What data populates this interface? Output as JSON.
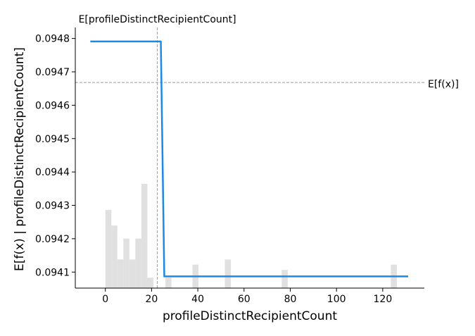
{
  "chart_data": {
    "type": "line",
    "title": "",
    "xlabel": "profileDistinctRecipientCount",
    "ylabel": "E[f(x) | profileDistinctRecipientCount]",
    "xlim": [
      -13,
      138
    ],
    "ylim": [
      0.094052,
      0.094833
    ],
    "xticks": [
      "0",
      "20",
      "40",
      "60",
      "80",
      "100",
      "120"
    ],
    "xtick_values": [
      0,
      20,
      40,
      60,
      80,
      100,
      120
    ],
    "yticks": [
      "0.0941",
      "0.0942",
      "0.0943",
      "0.0944",
      "0.0945",
      "0.0946",
      "0.0947",
      "0.0948"
    ],
    "ytick_values": [
      0.0941,
      0.0942,
      0.0943,
      0.0944,
      0.0945,
      0.0946,
      0.0947,
      0.0948
    ],
    "series": [
      {
        "color": "#1e88e5",
        "x": [
          -6.5,
          24,
          25.5,
          131
        ],
        "y": [
          0.094791,
          0.094791,
          0.094087,
          0.094087
        ]
      }
    ],
    "reference_lines": {
      "expected_x_value": 22.5,
      "expected_x_label": "E[profileDistinctRecipientCount]",
      "expected_fx_value": 0.094668,
      "expected_fx_label": "E[f(x)]"
    },
    "histogram": {
      "color": "#e0e0e0",
      "bin_width": 2.6,
      "bins": [
        {
          "x": 0,
          "height": 0.3
        },
        {
          "x": 2.6,
          "height": 0.24
        },
        {
          "x": 5.2,
          "height": 0.11
        },
        {
          "x": 7.8,
          "height": 0.19
        },
        {
          "x": 10.4,
          "height": 0.11
        },
        {
          "x": 13.0,
          "height": 0.19
        },
        {
          "x": 15.6,
          "height": 0.4
        },
        {
          "x": 18.2,
          "height": 0.04
        },
        {
          "x": 26.0,
          "height": 0.04
        },
        {
          "x": 37.7,
          "height": 0.09
        },
        {
          "x": 51.7,
          "height": 0.11
        },
        {
          "x": 76.3,
          "height": 0.07
        },
        {
          "x": 123.5,
          "height": 0.09
        }
      ]
    },
    "grid": false,
    "legend": "none"
  }
}
